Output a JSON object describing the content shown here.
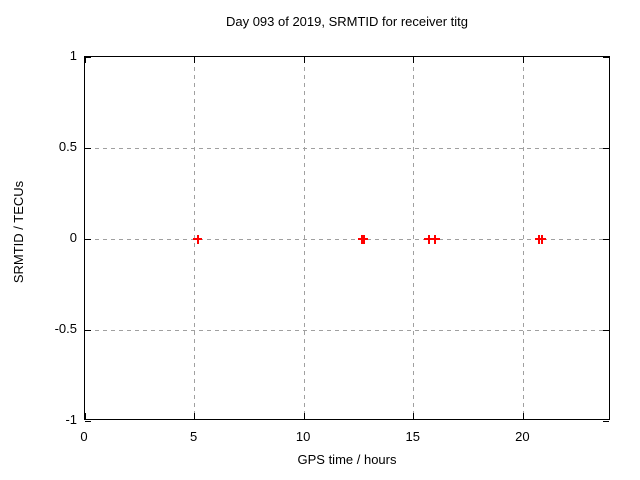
{
  "chart_data": {
    "type": "scatter",
    "title": "Day 093 of 2019, SRMTID for receiver titg",
    "xlabel": "GPS time / hours",
    "ylabel": "SRMTID / TECUs",
    "xlim": [
      0,
      24
    ],
    "ylim": [
      -1,
      1
    ],
    "xticks": [
      {
        "v": 0,
        "label": "0"
      },
      {
        "v": 5,
        "label": "5"
      },
      {
        "v": 10,
        "label": "10"
      },
      {
        "v": 15,
        "label": "15"
      },
      {
        "v": 20,
        "label": "20"
      }
    ],
    "yticks": [
      {
        "v": -1,
        "label": "-1"
      },
      {
        "v": -0.5,
        "label": "-0.5"
      },
      {
        "v": 0,
        "label": "0"
      },
      {
        "v": 0.5,
        "label": "0.5"
      },
      {
        "v": 1,
        "label": "1"
      }
    ],
    "grid": true,
    "legend": "none",
    "series": [
      {
        "name": "SRMTID",
        "marker": "plus",
        "color": "#ff0000",
        "points": [
          {
            "x": 5.14,
            "y": 0.0
          },
          {
            "x": 12.66,
            "y": 0.0
          },
          {
            "x": 12.71,
            "y": 0.0
          },
          {
            "x": 15.68,
            "y": 0.0
          },
          {
            "x": 15.99,
            "y": 0.0
          },
          {
            "x": 20.73,
            "y": 0.0
          },
          {
            "x": 20.85,
            "y": 0.0
          }
        ]
      }
    ],
    "colors": {
      "background": "#ffffff",
      "border": "#000000",
      "grid": "#a0a0a0",
      "text": "#000000"
    }
  }
}
